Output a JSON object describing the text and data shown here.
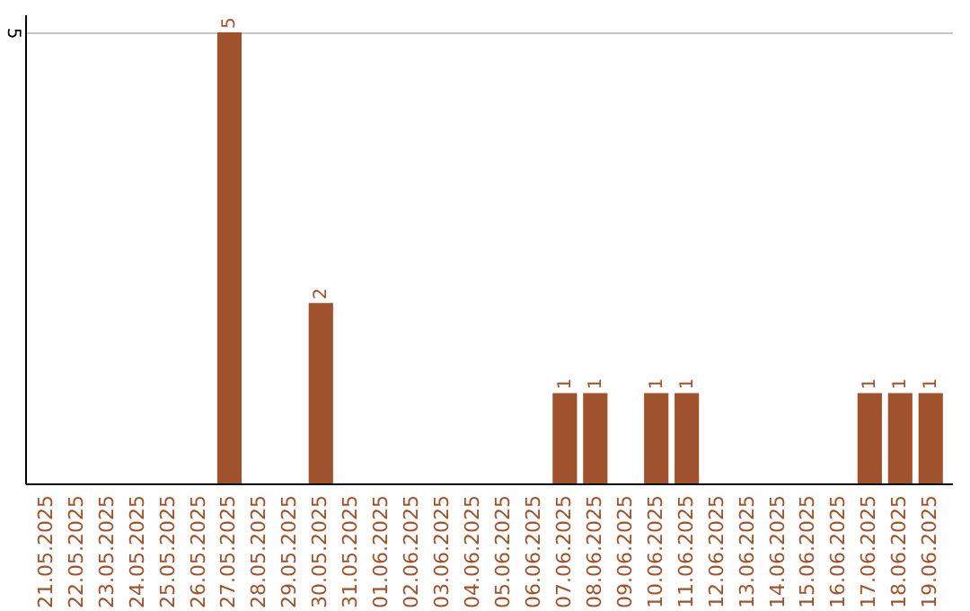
{
  "chart_data": {
    "type": "bar",
    "categories": [
      "21.05.2025",
      "22.05.2025",
      "23.05.2025",
      "24.05.2025",
      "25.05.2025",
      "26.05.2025",
      "27.05.2025",
      "28.05.2025",
      "29.05.2025",
      "30.05.2025",
      "31.05.2025",
      "01.06.2025",
      "02.06.2025",
      "03.06.2025",
      "04.06.2025",
      "05.06.2025",
      "06.06.2025",
      "07.06.2025",
      "08.06.2025",
      "09.06.2025",
      "10.06.2025",
      "11.06.2025",
      "12.06.2025",
      "13.06.2025",
      "14.06.2025",
      "15.06.2025",
      "16.06.2025",
      "17.06.2025",
      "18.06.2025",
      "19.06.2025"
    ],
    "values": [
      0,
      0,
      0,
      0,
      0,
      0,
      5,
      0,
      0,
      2,
      0,
      0,
      0,
      0,
      0,
      0,
      0,
      1,
      1,
      0,
      1,
      1,
      0,
      0,
      0,
      0,
      0,
      1,
      1,
      1
    ],
    "value_labels": [
      null,
      null,
      null,
      null,
      null,
      null,
      "5",
      null,
      null,
      "2",
      null,
      null,
      null,
      null,
      null,
      null,
      null,
      "1",
      "1",
      null,
      "1",
      "1",
      null,
      null,
      null,
      null,
      null,
      "1",
      "1",
      "1"
    ],
    "color": "#a0522d",
    "ylim": [
      0,
      5.2
    ],
    "yticks": [
      5
    ],
    "grid": "y"
  }
}
